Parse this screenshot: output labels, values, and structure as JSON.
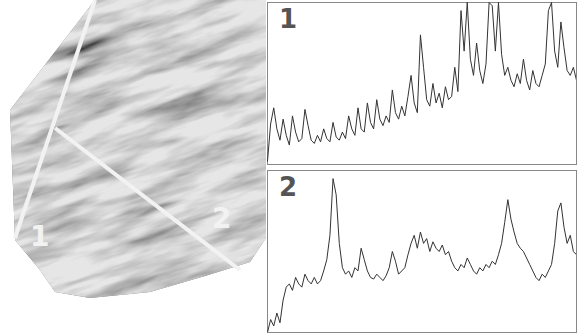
{
  "chart_data": [
    {
      "type": "line",
      "title": "1",
      "tick_labels": false,
      "xlim": [
        0,
        99
      ],
      "ylim": [
        0,
        100
      ],
      "color": "#333333",
      "values": [
        2,
        25,
        35,
        22,
        15,
        28,
        18,
        12,
        30,
        20,
        14,
        16,
        34,
        24,
        15,
        13,
        18,
        14,
        22,
        16,
        14,
        26,
        17,
        15,
        20,
        16,
        30,
        22,
        18,
        35,
        22,
        20,
        38,
        26,
        22,
        40,
        28,
        24,
        30,
        26,
        46,
        32,
        28,
        36,
        30,
        42,
        55,
        38,
        32,
        80,
        60,
        40,
        36,
        50,
        38,
        44,
        35,
        48,
        40,
        42,
        60,
        45,
        95,
        70,
        100,
        65,
        55,
        75,
        58,
        50,
        62,
        100,
        98,
        70,
        100,
        68,
        55,
        60,
        52,
        48,
        56,
        50,
        65,
        52,
        46,
        58,
        50,
        48,
        55,
        62,
        95,
        100,
        70,
        60,
        88,
        72,
        58,
        55,
        60,
        52
      ]
    },
    {
      "type": "line",
      "title": "2",
      "tick_labels": false,
      "xlim": [
        0,
        99
      ],
      "ylim": [
        0,
        100
      ],
      "color": "#333333",
      "values": [
        0,
        8,
        4,
        12,
        6,
        20,
        28,
        30,
        26,
        34,
        30,
        28,
        36,
        32,
        30,
        34,
        30,
        32,
        38,
        45,
        60,
        95,
        85,
        55,
        40,
        36,
        38,
        34,
        40,
        38,
        52,
        45,
        38,
        34,
        33,
        36,
        34,
        32,
        35,
        40,
        50,
        44,
        36,
        38,
        40,
        48,
        55,
        60,
        52,
        62,
        55,
        58,
        50,
        56,
        52,
        50,
        54,
        48,
        50,
        44,
        40,
        38,
        42,
        40,
        46,
        42,
        38,
        36,
        40,
        38,
        42,
        40,
        44,
        42,
        48,
        55,
        68,
        82,
        70,
        62,
        55,
        52,
        50,
        46,
        42,
        38,
        34,
        32,
        36,
        34,
        38,
        42,
        55,
        75,
        80,
        65,
        55,
        60,
        50,
        48
      ]
    }
  ],
  "image": {
    "line_labels": [
      "1",
      "2"
    ]
  }
}
